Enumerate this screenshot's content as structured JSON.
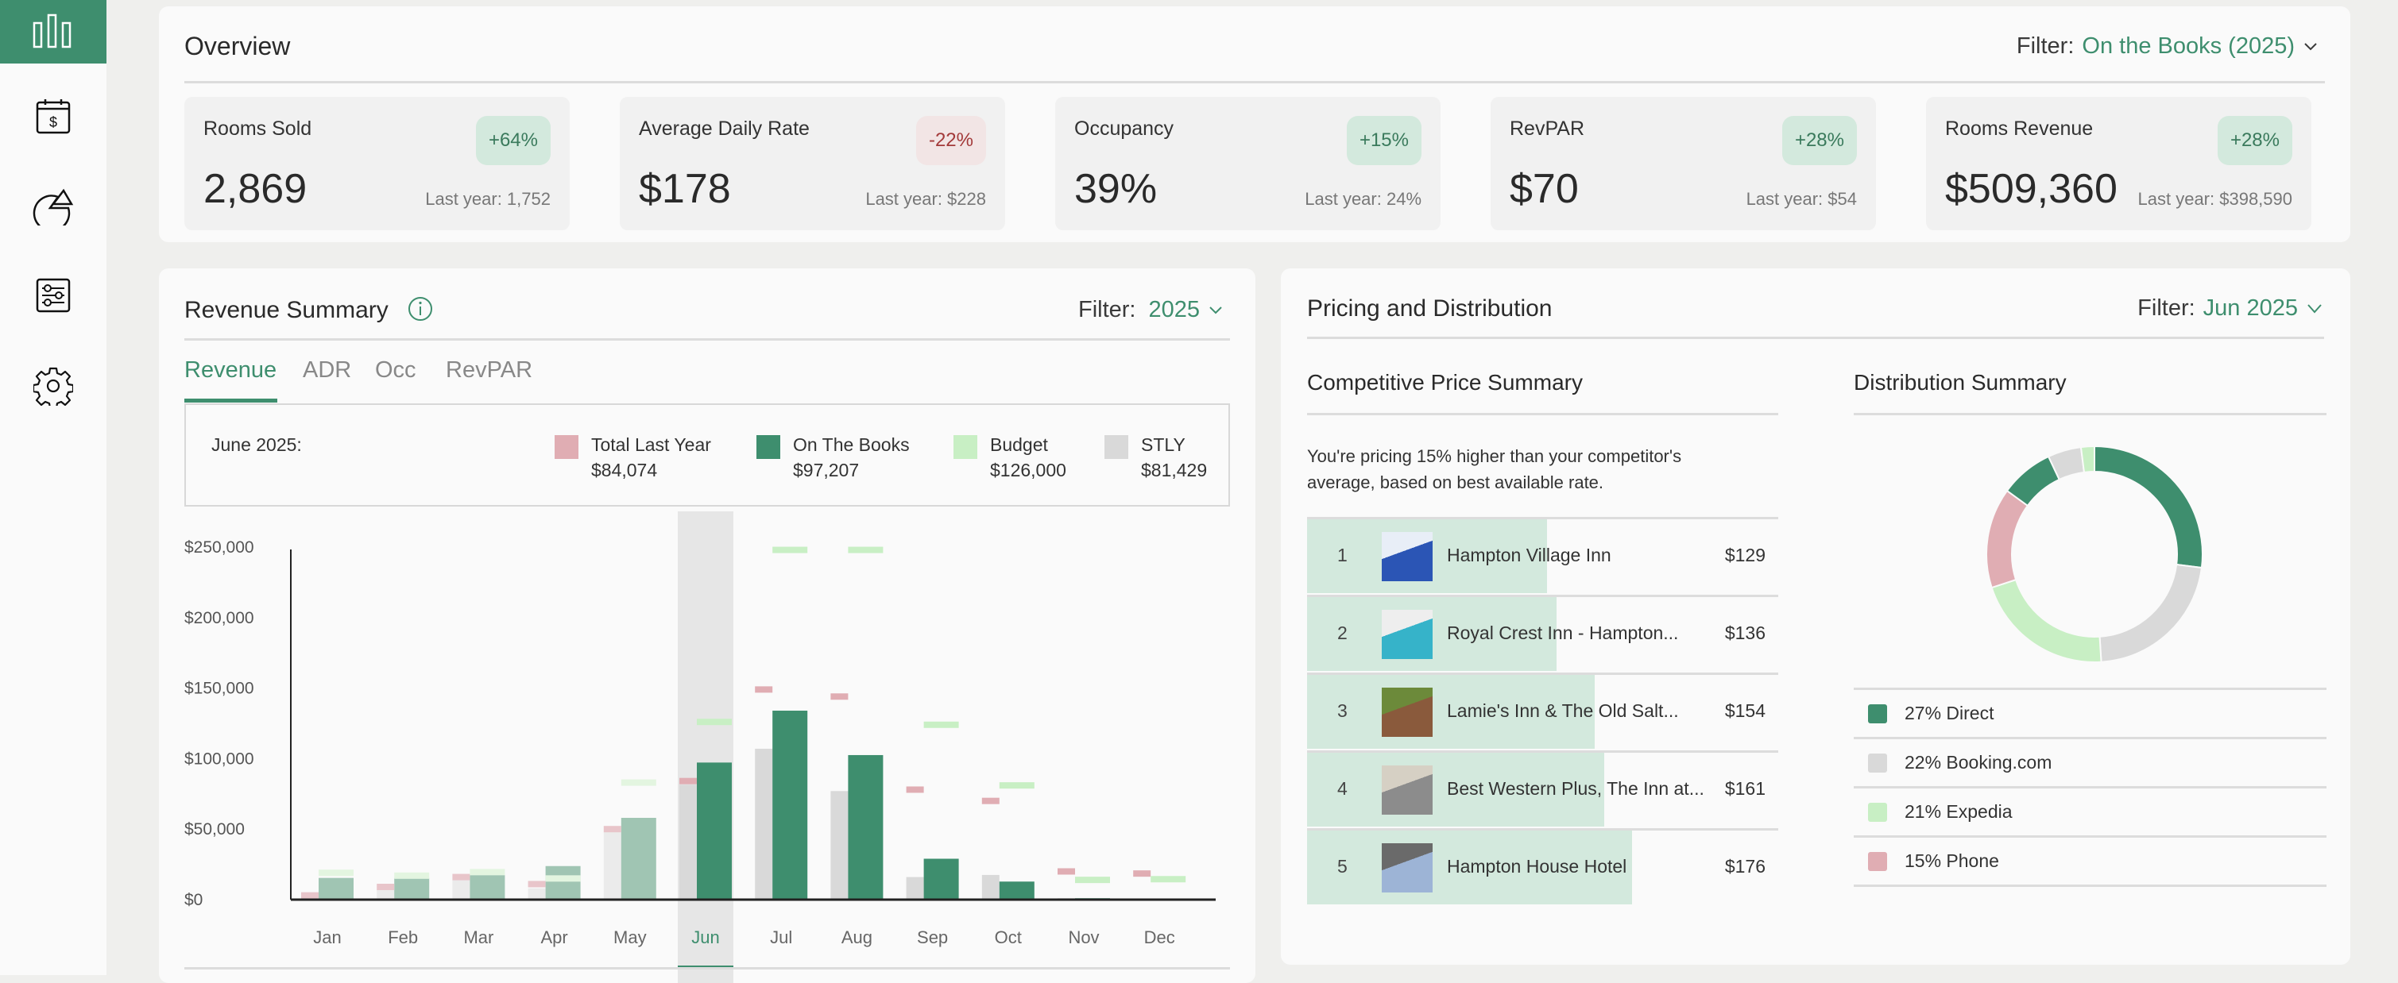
{
  "colors": {
    "accent": "#3e8e6e",
    "otb": "#3e8e6e",
    "last_year": "#e0adb3",
    "budget": "#c8efc4",
    "stly": "#d9d9d9"
  },
  "sidebar": {
    "items": [
      {
        "icon": "bar-chart-icon",
        "active": true
      },
      {
        "icon": "calendar-dollar-icon"
      },
      {
        "icon": "pie-chart-icon"
      },
      {
        "icon": "sliders-icon"
      },
      {
        "icon": "gear-icon"
      }
    ]
  },
  "overview": {
    "title": "Overview",
    "filter_label": "Filter:",
    "filter_value": "On the Books (2025)",
    "kpis": [
      {
        "label": "Rooms Sold",
        "value": "2,869",
        "change": "+64%",
        "last_year": "Last year: 1,752",
        "negative": false
      },
      {
        "label": "Average Daily Rate",
        "value": "$178",
        "change": "-22%",
        "last_year": "Last year: $228",
        "negative": true
      },
      {
        "label": "Occupancy",
        "value": "39%",
        "change": "+15%",
        "last_year": "Last year: 24%",
        "negative": false
      },
      {
        "label": "RevPAR",
        "value": "$70",
        "change": "+28%",
        "last_year": "Last year: $54",
        "negative": false
      },
      {
        "label": "Rooms Revenue",
        "value": "$509,360",
        "change": "+28%",
        "last_year": "Last year: $398,590",
        "negative": false
      }
    ]
  },
  "revenue": {
    "title": "Revenue Summary",
    "filter_label": "Filter:",
    "filter_value": "2025",
    "tabs": [
      "Revenue",
      "ADR",
      "Occ",
      "RevPAR"
    ],
    "legend": {
      "period": "June 2025:",
      "items": [
        {
          "label": "Total Last Year",
          "value": "$84,074"
        },
        {
          "label": "On The Books",
          "value": "$97,207"
        },
        {
          "label": "Budget",
          "value": "$126,000"
        },
        {
          "label": "STLY",
          "value": "$81,429"
        }
      ]
    }
  },
  "chart_data": {
    "type": "bar",
    "categories": [
      "Jan",
      "Feb",
      "Mar",
      "Apr",
      "May",
      "Jun",
      "Jul",
      "Aug",
      "Sep",
      "Oct",
      "Nov",
      "Dec"
    ],
    "selected": "Jun",
    "ylim": [
      0,
      250000
    ],
    "yticks": [
      "$0",
      "$50,000",
      "$100,000",
      "$150,000",
      "$200,000",
      "$250,000"
    ],
    "ytick_values": [
      0,
      50000,
      100000,
      150000,
      200000,
      250000
    ],
    "series": [
      {
        "name": "STLY",
        "kind": "bar",
        "values": [
          0,
          7000,
          14000,
          8000,
          48000,
          81429,
          107000,
          77000,
          16000,
          17500,
          1000,
          0
        ]
      },
      {
        "name": "On The Books",
        "kind": "bar",
        "values": [
          15400,
          15400,
          17500,
          23800,
          58000,
          97207,
          134000,
          102500,
          29000,
          12800,
          1000,
          0
        ]
      },
      {
        "name": "Total Last Year",
        "kind": "marker",
        "values": [
          3000,
          9000,
          16000,
          11000,
          50000,
          84074,
          149000,
          144000,
          78000,
          70000,
          20000,
          18500
        ]
      },
      {
        "name": "Budget",
        "kind": "marker",
        "values": [
          19000,
          17000,
          19500,
          15000,
          83000,
          126000,
          248000,
          248000,
          124000,
          81000,
          14000,
          14500
        ]
      }
    ]
  },
  "pricing": {
    "title": "Pricing and Distribution",
    "filter_label": "Filter:",
    "filter_value": "Jun 2025",
    "competitive": {
      "title": "Competitive Price Summary",
      "text": "You're pricing 15% higher than your competitor's average, based on best available rate.",
      "rows": [
        {
          "rank": "1",
          "name": "Hampton Village Inn",
          "price": "$129",
          "fill": 0.51
        },
        {
          "rank": "2",
          "name": "Royal Crest Inn - Hampton...",
          "price": "$136",
          "fill": 0.53
        },
        {
          "rank": "3",
          "name": "Lamie's Inn & The Old Salt...",
          "price": "$154",
          "fill": 0.61
        },
        {
          "rank": "4",
          "name": "Best Western Plus, The Inn at...",
          "price": "$161",
          "fill": 0.63
        },
        {
          "rank": "5",
          "name": "Hampton House Hotel",
          "price": "$176",
          "fill": 0.69
        }
      ]
    },
    "distribution": {
      "title": "Distribution Summary",
      "items": [
        {
          "label": "27% Direct",
          "pct": 27,
          "color": "#3e8e6e"
        },
        {
          "label": "22% Booking.com",
          "pct": 22,
          "color": "#d9d9d9"
        },
        {
          "label": "21% Expedia",
          "pct": 21,
          "color": "#c8efc4"
        },
        {
          "label": "15% Phone",
          "pct": 15,
          "color": "#e0adb3"
        }
      ],
      "donut_extra": [
        {
          "pct": 8,
          "color": "#3e8e6e"
        },
        {
          "pct": 5,
          "color": "#d9d9d9"
        },
        {
          "pct": 2,
          "color": "#c8efc4"
        }
      ]
    }
  }
}
